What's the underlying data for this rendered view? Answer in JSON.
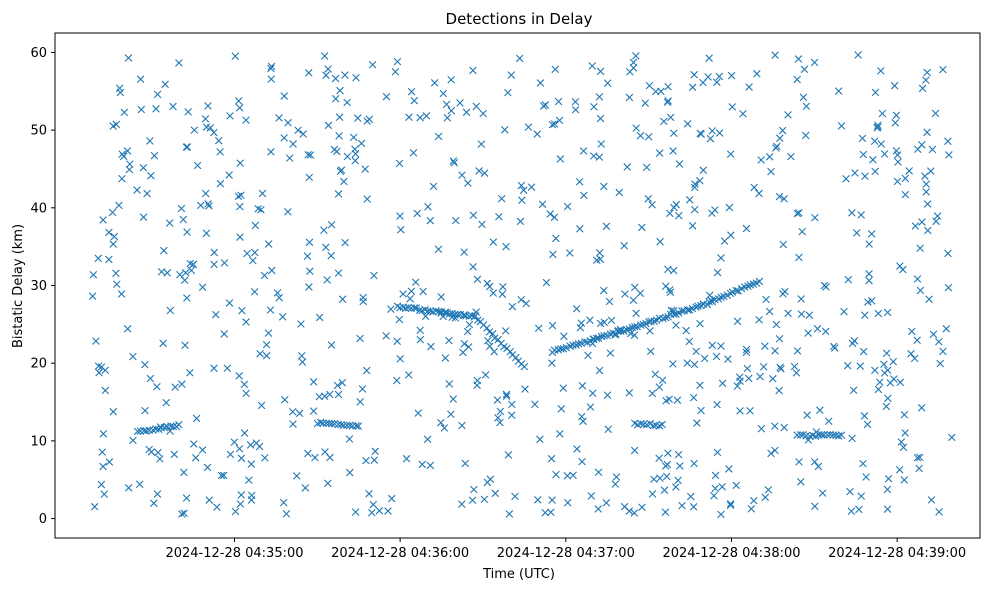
{
  "chart_data": {
    "type": "scatter",
    "title": "Detections in Delay",
    "xlabel": "Time (UTC)",
    "ylabel": "Bistatic Delay (km)",
    "xlim": [
      "2024-12-28 04:33:55",
      "2024-12-28 04:39:30"
    ],
    "ylim": [
      -2.5,
      62.5
    ],
    "x_ticks": [
      "2024-12-28 04:35:00",
      "2024-12-28 04:36:00",
      "2024-12-28 04:37:00",
      "2024-12-28 04:38:00",
      "2024-12-28 04:39:00"
    ],
    "y_ticks": [
      0,
      10,
      20,
      30,
      40,
      50,
      60
    ],
    "grid": false,
    "marker": "x",
    "color": "#1f77b4",
    "x_start": "2024-12-28 04:34:08",
    "x_end": "2024-12-28 04:39:20",
    "num_points": 1046,
    "track_segments": [
      {
        "x_start": "2024-12-28 04:35:59",
        "x_end": "2024-12-28 04:36:27",
        "y_start": 27.3,
        "y_end": 26.0
      },
      {
        "x_start": "2024-12-28 04:36:27",
        "x_end": "2024-12-28 04:36:45",
        "y_start": 26.0,
        "y_end": 19.5
      },
      {
        "x_start": "2024-12-28 04:36:55",
        "x_end": "2024-12-28 04:37:10",
        "y_start": 21.5,
        "y_end": 23.0
      },
      {
        "x_start": "2024-12-28 04:37:10",
        "x_end": "2024-12-28 04:37:50",
        "y_start": 23.0,
        "y_end": 27.5
      },
      {
        "x_start": "2024-12-28 04:37:50",
        "x_end": "2024-12-28 04:38:10",
        "y_start": 27.5,
        "y_end": 30.5
      },
      {
        "x_start": "2024-12-28 04:35:30",
        "x_end": "2024-12-28 04:35:45",
        "y_start": 12.3,
        "y_end": 12.0
      },
      {
        "x_start": "2024-12-28 04:34:25",
        "x_end": "2024-12-28 04:34:40",
        "y_start": 11.2,
        "y_end": 12.0
      },
      {
        "x_start": "2024-12-28 04:38:25",
        "x_end": "2024-12-28 04:38:40",
        "y_start": 10.7,
        "y_end": 10.7
      },
      {
        "x_start": "2024-12-28 04:37:25",
        "x_end": "2024-12-28 04:37:35",
        "y_start": 12.2,
        "y_end": 12.0
      }
    ]
  }
}
